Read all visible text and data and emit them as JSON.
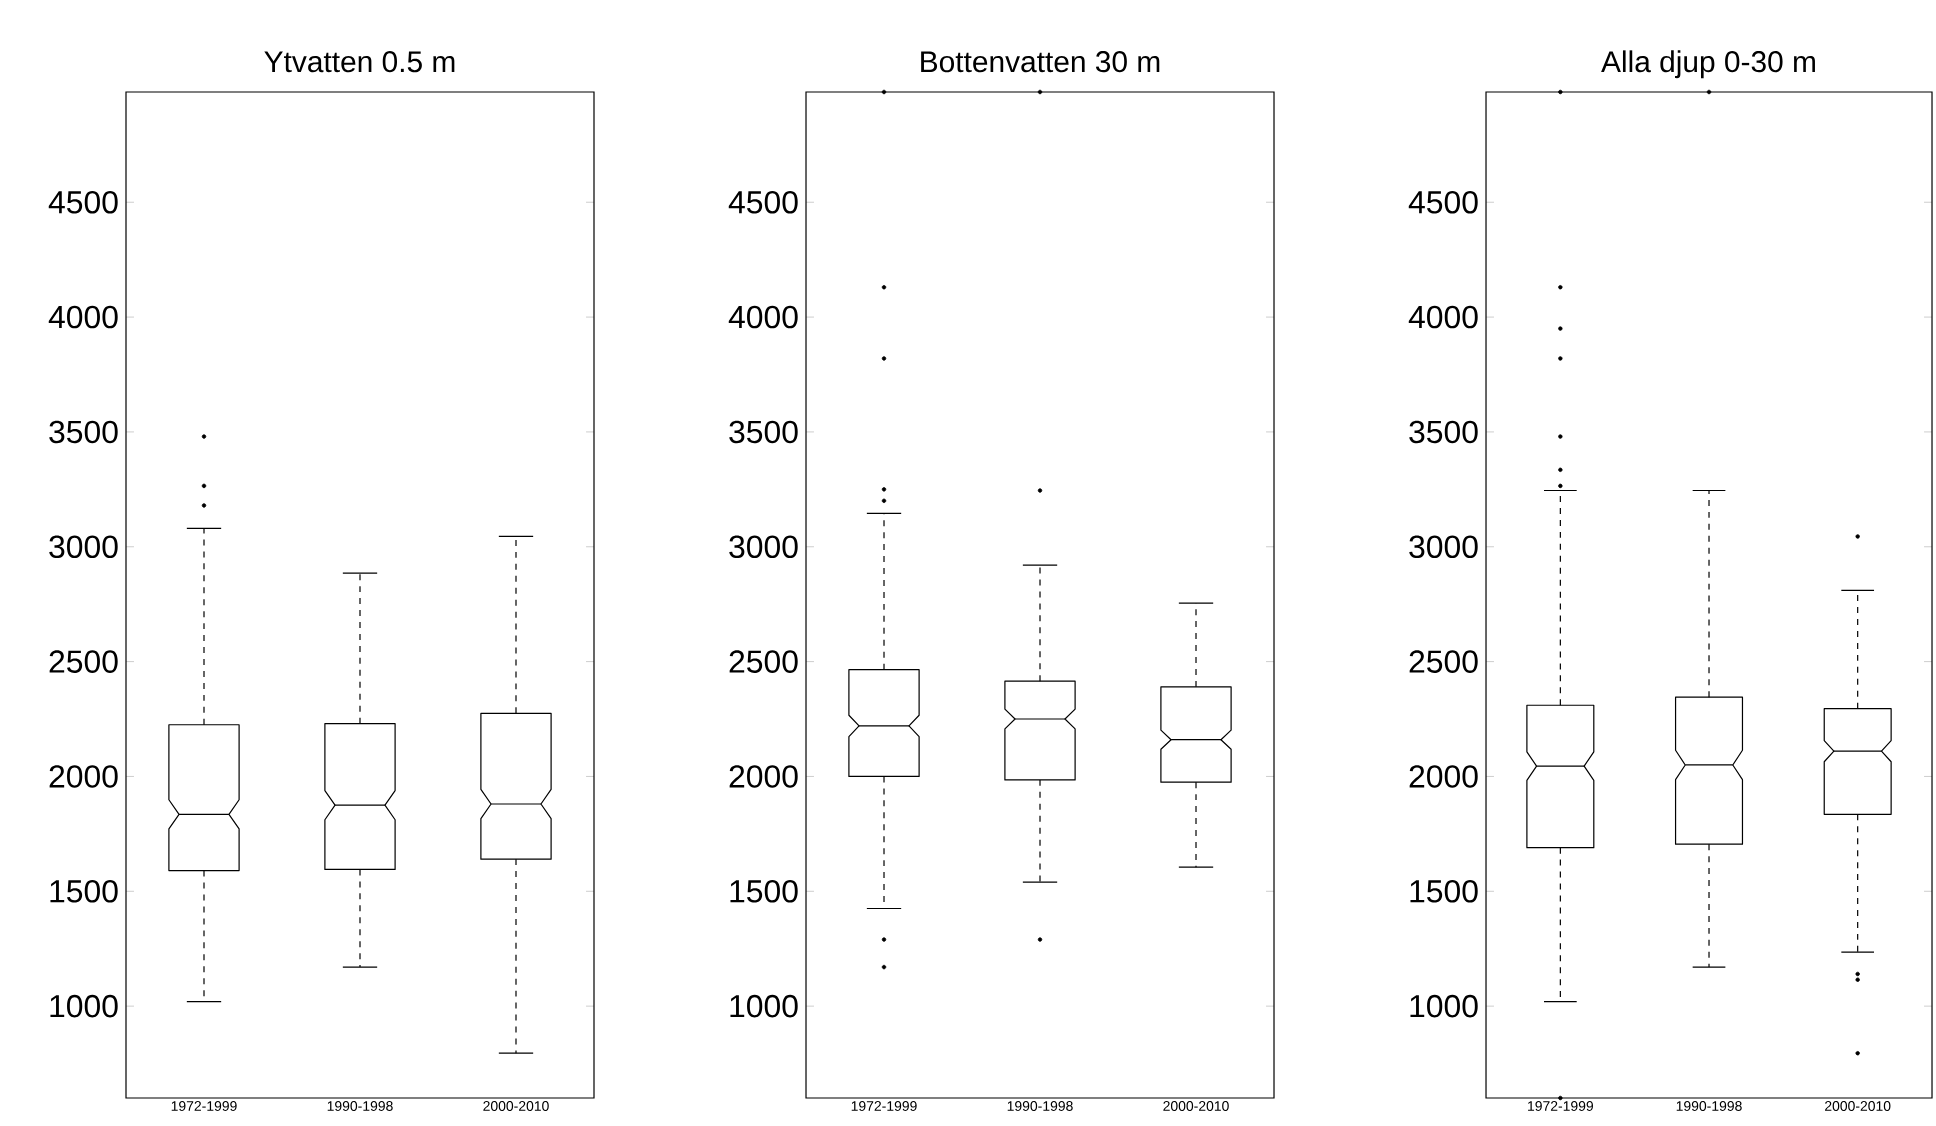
{
  "chart_data": [
    {
      "type": "box",
      "title": "Ytvatten 0.5 m",
      "categories": [
        "1972-1999",
        "1990-1998",
        "2000-2010"
      ],
      "ylim": [
        600,
        4980
      ],
      "yticks": [
        1000,
        1500,
        2000,
        2500,
        3000,
        3500,
        4000,
        4500
      ],
      "boxes": [
        {
          "low": 1020,
          "q1": 1590,
          "median": 1835,
          "q3": 2225,
          "high": 3080,
          "outliers": [
            3180,
            3265,
            3480
          ]
        },
        {
          "low": 1170,
          "q1": 1595,
          "median": 1875,
          "q3": 2230,
          "high": 2885
        },
        {
          "low": 795,
          "q1": 1640,
          "median": 1880,
          "q3": 2275,
          "high": 3045
        }
      ]
    },
    {
      "type": "box",
      "title": "Bottenvatten 30 m",
      "categories": [
        "1972-1999",
        "1990-1998",
        "2000-2010"
      ],
      "ylim": [
        600,
        4980
      ],
      "yticks": [
        1000,
        1500,
        2000,
        2500,
        3000,
        3500,
        4000,
        4500
      ],
      "boxes": [
        {
          "low": 1425,
          "q1": 2000,
          "median": 2220,
          "q3": 2465,
          "high": 3145,
          "outliers": [
            1170,
            1290,
            3200,
            3250,
            3820,
            4130,
            4980
          ]
        },
        {
          "low": 1540,
          "q1": 1985,
          "median": 2250,
          "q3": 2415,
          "high": 2920,
          "outliers": [
            1290,
            3245,
            4980
          ]
        },
        {
          "low": 1605,
          "q1": 1975,
          "median": 2160,
          "q3": 2390,
          "high": 2755
        }
      ]
    },
    {
      "type": "box",
      "title": "Alla djup 0-30 m",
      "categories": [
        "1972-1999",
        "1990-1998",
        "2000-2010"
      ],
      "ylim": [
        600,
        4980
      ],
      "yticks": [
        1000,
        1500,
        2000,
        2500,
        3000,
        3500,
        4000,
        4500
      ],
      "boxes": [
        {
          "low": 1020,
          "q1": 1690,
          "median": 2045,
          "q3": 2310,
          "high": 3245,
          "outliers": [
            600,
            3265,
            3335,
            3480,
            3820,
            3950,
            4130,
            4980
          ]
        },
        {
          "low": 1170,
          "q1": 1705,
          "median": 2050,
          "q3": 2345,
          "high": 3245,
          "outliers": [
            4980
          ]
        },
        {
          "low": 1235,
          "q1": 1835,
          "median": 2110,
          "q3": 2295,
          "high": 2810,
          "outliers": [
            795,
            1115,
            1140,
            3045
          ]
        }
      ]
    }
  ]
}
